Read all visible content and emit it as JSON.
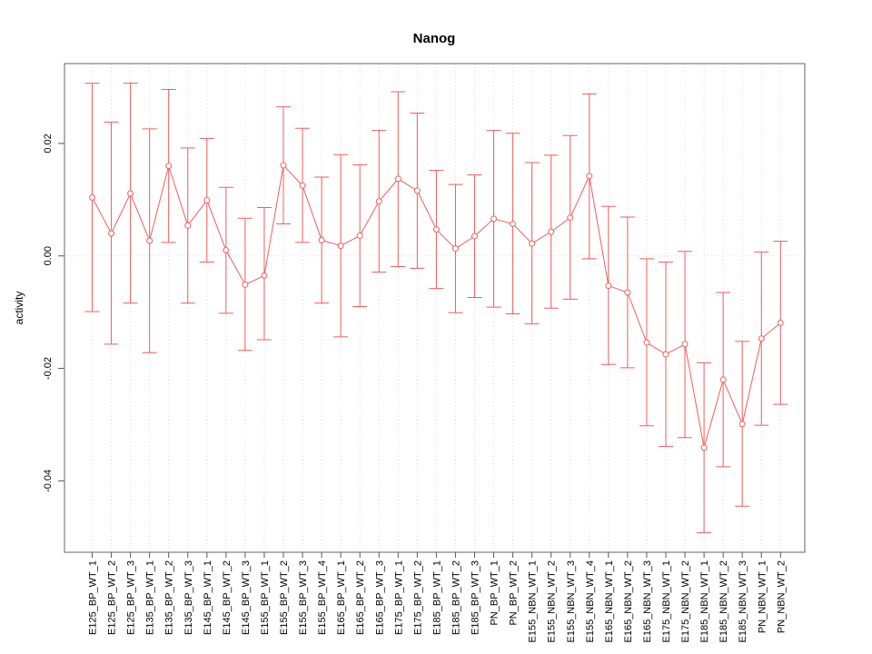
{
  "figure": {
    "background": "#ffffff"
  },
  "chart_data": {
    "type": "line",
    "subtype": "points-with-error-bars",
    "title": "Nanog",
    "xlabel": "",
    "ylabel": "activity",
    "legend": "none",
    "marker": "open-circle",
    "categories": [
      "E125_BP_WT_1",
      "E125_BP_WT_2",
      "E125_BP_WT_3",
      "E135_BP_WT_1",
      "E135_BP_WT_2",
      "E135_BP_WT_3",
      "E145_BP_WT_1",
      "E145_BP_WT_2",
      "E145_BP_WT_3",
      "E155_BP_WT_1",
      "E155_BP_WT_2",
      "E155_BP_WT_3",
      "E155_BP_WT_4",
      "E165_BP_WT_1",
      "E165_BP_WT_2",
      "E165_BP_WT_3",
      "E175_BP_WT_1",
      "E175_BP_WT_2",
      "E185_BP_WT_1",
      "E185_BP_WT_2",
      "E185_BP_WT_3",
      "PN_BP_WT_1",
      "PN_BP_WT_2",
      "E155_NBN_WT_1",
      "E155_NBN_WT_2",
      "E155_NBN_WT_3",
      "E155_NBN_WT_4",
      "E165_NBN_WT_1",
      "E165_NBN_WT_2",
      "E165_NBN_WT_3",
      "E175_NBN_WT_1",
      "E175_NBN_WT_2",
      "E185_NBN_WT_1",
      "E185_NBN_WT_2",
      "E185_NBN_WT_3",
      "PN_NBN_WT_1",
      "PN_NBN_WT_2"
    ],
    "series": [
      {
        "name": "activity",
        "values": [
          0.0104,
          0.004,
          0.0111,
          0.0027,
          0.016,
          0.0054,
          0.0099,
          0.001,
          -0.0051,
          -0.0035,
          0.0161,
          0.0125,
          0.0028,
          0.0018,
          0.0036,
          0.0097,
          0.0137,
          0.0116,
          0.0047,
          0.0013,
          0.0035,
          0.0066,
          0.0057,
          0.0022,
          0.0043,
          0.0068,
          0.0142,
          -0.0053,
          -0.0065,
          -0.0154,
          -0.0175,
          -0.0157,
          -0.0341,
          -0.022,
          -0.0299,
          -0.0147,
          -0.0119
        ],
        "err_upper": [
          0.0307,
          0.0238,
          0.0307,
          0.0226,
          0.0296,
          0.0192,
          0.0209,
          0.0122,
          0.0067,
          0.0086,
          0.0265,
          0.0227,
          0.014,
          0.018,
          0.0162,
          0.0223,
          0.0292,
          0.0254,
          0.0152,
          0.0127,
          0.0144,
          0.0223,
          0.0218,
          0.0166,
          0.0179,
          0.0214,
          0.0288,
          0.0088,
          0.0069,
          -0.0005,
          -0.0011,
          0.0008,
          -0.019,
          -0.0065,
          -0.0152,
          0.0007,
          0.0026
        ],
        "err_lower": [
          -0.0099,
          -0.0157,
          -0.0084,
          -0.0172,
          0.0024,
          -0.0084,
          -0.0011,
          -0.0102,
          -0.0168,
          -0.0149,
          0.0057,
          0.0024,
          -0.0084,
          -0.0144,
          -0.009,
          -0.0029,
          -0.0019,
          -0.0022,
          -0.0058,
          -0.0101,
          -0.0074,
          -0.0091,
          -0.0103,
          -0.0121,
          -0.0093,
          -0.0077,
          -0.0005,
          -0.0193,
          -0.0199,
          -0.0302,
          -0.0339,
          -0.0323,
          -0.0492,
          -0.0375,
          -0.0445,
          -0.0301,
          -0.0264
        ]
      }
    ],
    "y_ticks": [
      0.02,
      0,
      -0.02,
      -0.04
    ],
    "y_tick_labels": [
      "0.02",
      "0.00",
      "-0.02",
      "-0.04"
    ],
    "ylim": [
      -0.0527,
      0.0342
    ],
    "grid": {
      "vertical_dotted_per_category": true,
      "horizontal_dotted_at_zero": true
    },
    "colors": {
      "series": "#f25c5c",
      "grid": "#d9d9d9",
      "box": "#666666",
      "tick": "#555555",
      "text": "#000000"
    }
  }
}
